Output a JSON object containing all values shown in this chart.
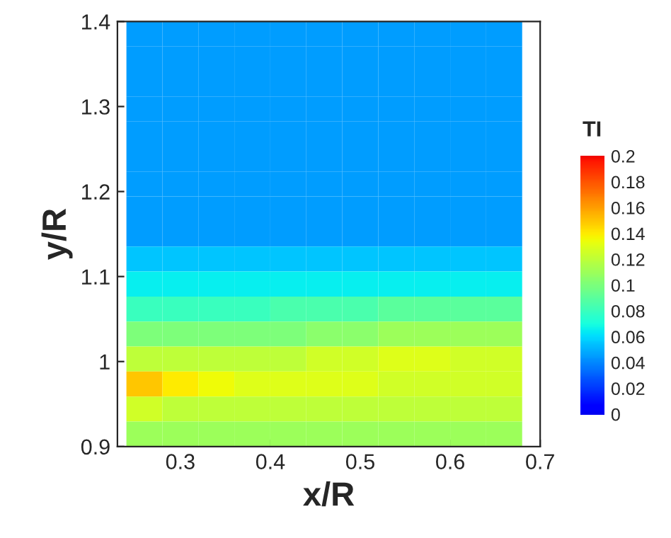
{
  "chart_data": {
    "type": "heatmap",
    "xlabel": "x/R",
    "ylabel": "y/R",
    "clabel": "TI",
    "x": [
      0.26,
      0.3,
      0.34,
      0.38,
      0.42,
      0.46,
      0.5,
      0.54,
      0.58,
      0.62,
      0.66
    ],
    "cells": [
      [
        0.045,
        0.045,
        0.045,
        0.045,
        0.045,
        0.045,
        0.045,
        0.045,
        0.045,
        0.045,
        0.045
      ],
      [
        0.045,
        0.045,
        0.045,
        0.045,
        0.045,
        0.045,
        0.045,
        0.045,
        0.045,
        0.045,
        0.045
      ],
      [
        0.045,
        0.045,
        0.045,
        0.045,
        0.045,
        0.045,
        0.045,
        0.045,
        0.045,
        0.045,
        0.045
      ],
      [
        0.045,
        0.045,
        0.045,
        0.045,
        0.045,
        0.045,
        0.045,
        0.045,
        0.045,
        0.045,
        0.045
      ],
      [
        0.045,
        0.045,
        0.045,
        0.045,
        0.045,
        0.045,
        0.045,
        0.045,
        0.045,
        0.045,
        0.045
      ],
      [
        0.045,
        0.045,
        0.045,
        0.045,
        0.045,
        0.045,
        0.045,
        0.045,
        0.045,
        0.045,
        0.045
      ],
      [
        0.045,
        0.045,
        0.045,
        0.045,
        0.045,
        0.045,
        0.045,
        0.045,
        0.045,
        0.045,
        0.045
      ],
      [
        0.045,
        0.045,
        0.045,
        0.045,
        0.045,
        0.045,
        0.045,
        0.045,
        0.045,
        0.045,
        0.045
      ],
      [
        0.045,
        0.045,
        0.045,
        0.045,
        0.045,
        0.045,
        0.045,
        0.045,
        0.045,
        0.045,
        0.045
      ],
      [
        0.055,
        0.055,
        0.055,
        0.055,
        0.055,
        0.055,
        0.055,
        0.055,
        0.055,
        0.055,
        0.055
      ],
      [
        0.065,
        0.065,
        0.065,
        0.065,
        0.065,
        0.065,
        0.065,
        0.065,
        0.065,
        0.065,
        0.065
      ],
      [
        0.08,
        0.08,
        0.08,
        0.08,
        0.085,
        0.085,
        0.085,
        0.09,
        0.09,
        0.09,
        0.09
      ],
      [
        0.1,
        0.1,
        0.1,
        0.1,
        0.1,
        0.105,
        0.105,
        0.11,
        0.11,
        0.11,
        0.11
      ],
      [
        0.12,
        0.12,
        0.12,
        0.12,
        0.12,
        0.125,
        0.125,
        0.13,
        0.13,
        0.125,
        0.125
      ],
      [
        0.15,
        0.14,
        0.135,
        0.13,
        0.13,
        0.13,
        0.13,
        0.125,
        0.125,
        0.125,
        0.125
      ],
      [
        0.125,
        0.12,
        0.12,
        0.12,
        0.12,
        0.12,
        0.12,
        0.12,
        0.12,
        0.12,
        0.12
      ],
      [
        0.11,
        0.11,
        0.11,
        0.11,
        0.11,
        0.11,
        0.11,
        0.11,
        0.11,
        0.11,
        0.11
      ]
    ],
    "xlim": [
      0.23,
      0.7
    ],
    "xticks": [
      0.3,
      0.4,
      0.5,
      0.6,
      0.7
    ],
    "ylim": [
      0.9,
      1.4
    ],
    "yticks": [
      0.9,
      1,
      1.1,
      1.2,
      1.3,
      1.4
    ],
    "clim": [
      0,
      0.2
    ],
    "cticks": [
      0,
      0.02,
      0.04,
      0.06,
      0.08,
      0.1,
      0.12,
      0.14,
      0.16,
      0.18,
      0.2
    ]
  }
}
